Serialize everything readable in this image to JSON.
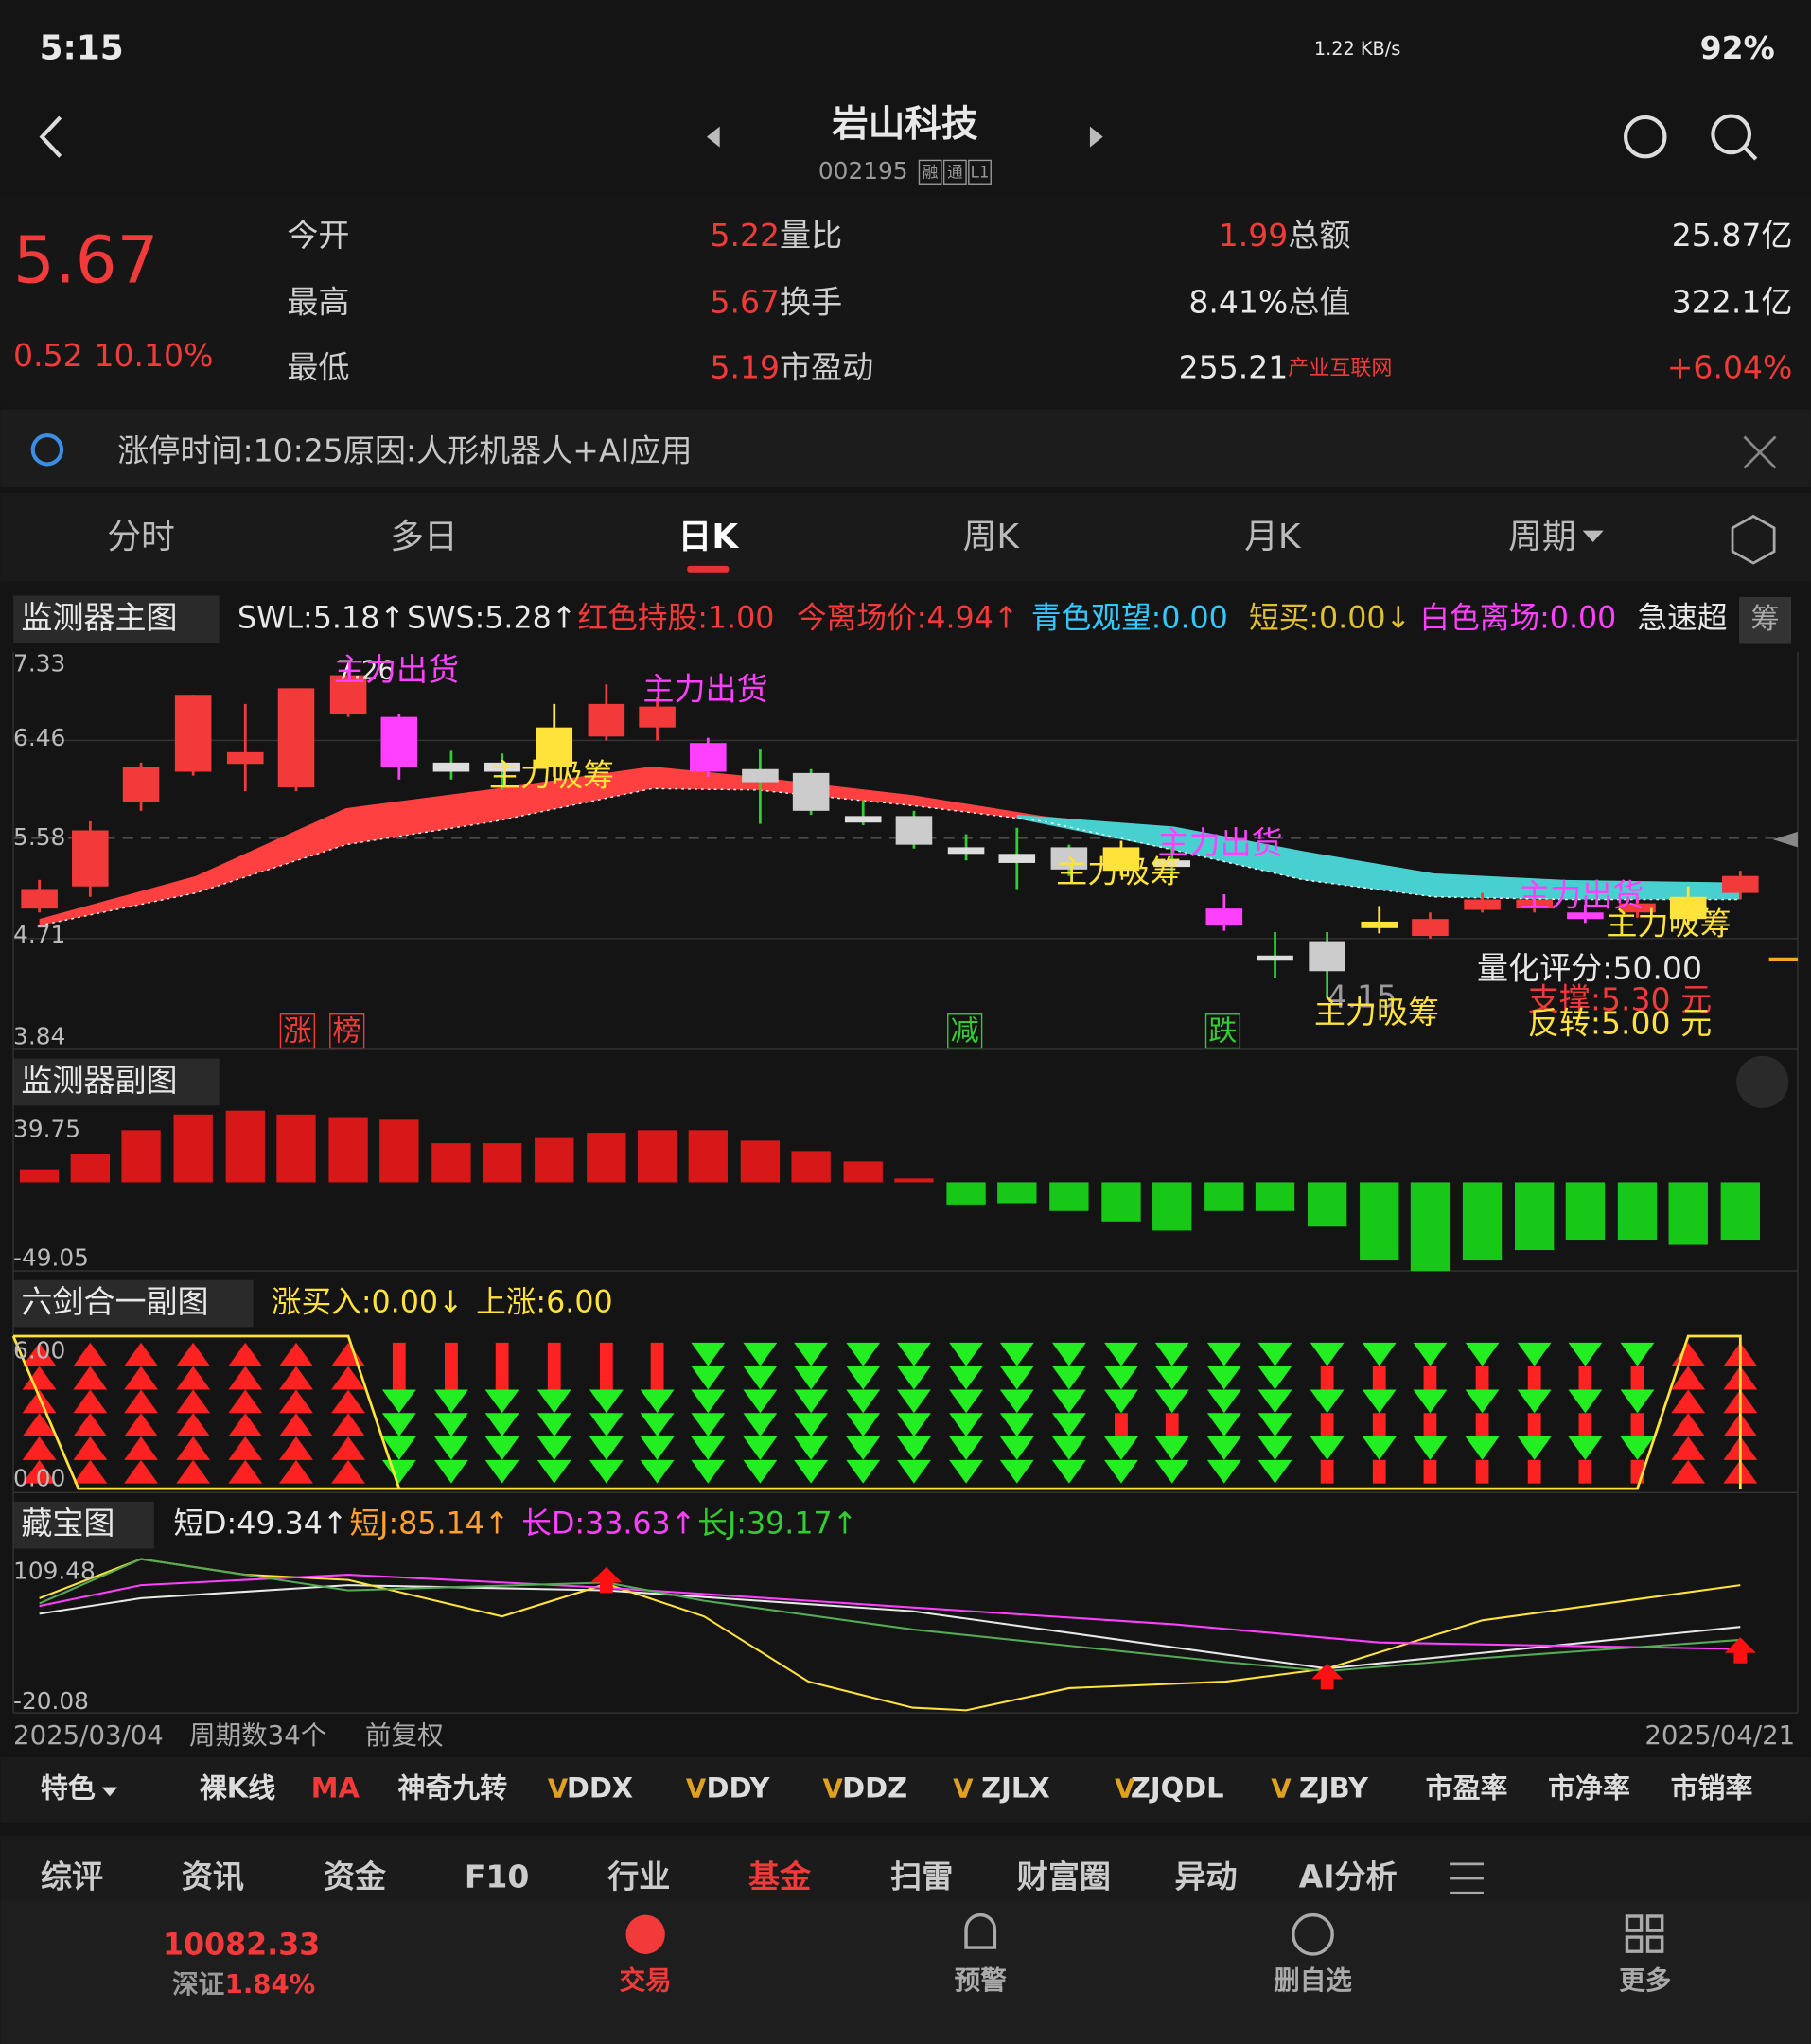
{
  "status_bar": {
    "time": "5:15",
    "network": "1.22 KB/s",
    "battery": "92%"
  },
  "header": {
    "title": "岩山科技",
    "code": "002195",
    "badges": [
      "融",
      "通",
      "L1"
    ]
  },
  "quote": {
    "price": "5.67",
    "change": "0.52",
    "change_pct": "10.10%",
    "stats": [
      [
        {
          "label": "今开",
          "value": "5.22"
        },
        {
          "label": "量比",
          "value": "1.99"
        },
        {
          "label": "总额",
          "value": "25.87亿"
        }
      ],
      [
        {
          "label": "最高",
          "value": "5.67"
        },
        {
          "label": "换手",
          "value": "8.41%"
        },
        {
          "label": "总值",
          "value": "322.1亿"
        }
      ],
      [
        {
          "label": "最低",
          "value": "5.19"
        },
        {
          "label": "市盈动",
          "value": "255.21"
        },
        {
          "label": "产业互联网",
          "value": "+6.04%"
        }
      ]
    ]
  },
  "notice": "涨停时间:10:25原因:人形机器人+AI应用",
  "tabs": [
    "分时",
    "多日",
    "日K",
    "周K",
    "月K",
    "周期"
  ],
  "main_chart": {
    "title": "监测器主图",
    "indicators": [
      "SWL:5.18↑",
      "SWS:5.28↑",
      "红色持股:1.00",
      "今离场价:4.94↑",
      "青色观望:0.00",
      "短买:0.00↓",
      "白色离场:0.00",
      "急速超"
    ],
    "badge": "筹",
    "yticks": [
      "7.33",
      "6.46",
      "5.58",
      "4.71",
      "3.84"
    ],
    "annotations": [
      "7.26",
      "主力出货",
      "主力出货",
      "主力吸筹",
      "主力吸筹",
      "主力出货",
      "主力出货",
      "主力吸筹",
      "4.15",
      "主力吸筹",
      "量化评分:50.00",
      "支撑:5.30 元",
      "反转:5.00 元"
    ],
    "markers": [
      "涨",
      "榜",
      "减",
      "跌"
    ]
  },
  "sub_chart_1": {
    "title": "监测器副图",
    "yticks": [
      "39.75",
      "-49.05"
    ]
  },
  "sub_chart_2": {
    "title": "六剑合一副图",
    "indicators": [
      "涨买入:0.00↓",
      "上涨:6.00"
    ],
    "yticks": [
      "6.00",
      "0.00"
    ]
  },
  "sub_chart_3": {
    "title": "藏宝图",
    "indicators": [
      "短D:49.34↑",
      "短J:85.14↑",
      "长D:33.63↑",
      "长J:39.17↑"
    ],
    "yticks": [
      "109.48",
      "-20.08"
    ]
  },
  "axis_footer": {
    "start": "2025/03/04",
    "count": "周期数34个",
    "adjust": "前复权",
    "end": "2025/04/21"
  },
  "indicator_bar": [
    "特色",
    "裸K线",
    "MA",
    "神奇九转",
    "DDX",
    "DDY",
    "DDZ",
    "ZJLX",
    "ZJQDL",
    "ZJBY",
    "市盈率",
    "市净率",
    "市销率"
  ],
  "bottom_tabs": [
    "综评",
    "资讯",
    "资金",
    "F10",
    "行业",
    "基金",
    "扫雷",
    "财富圈",
    "异动",
    "AI分析"
  ],
  "nav": {
    "index_value": "10082.33",
    "index_name": "深证",
    "index_change": "1.84%",
    "items": [
      "交易",
      "预警",
      "删自选",
      "更多"
    ]
  }
}
